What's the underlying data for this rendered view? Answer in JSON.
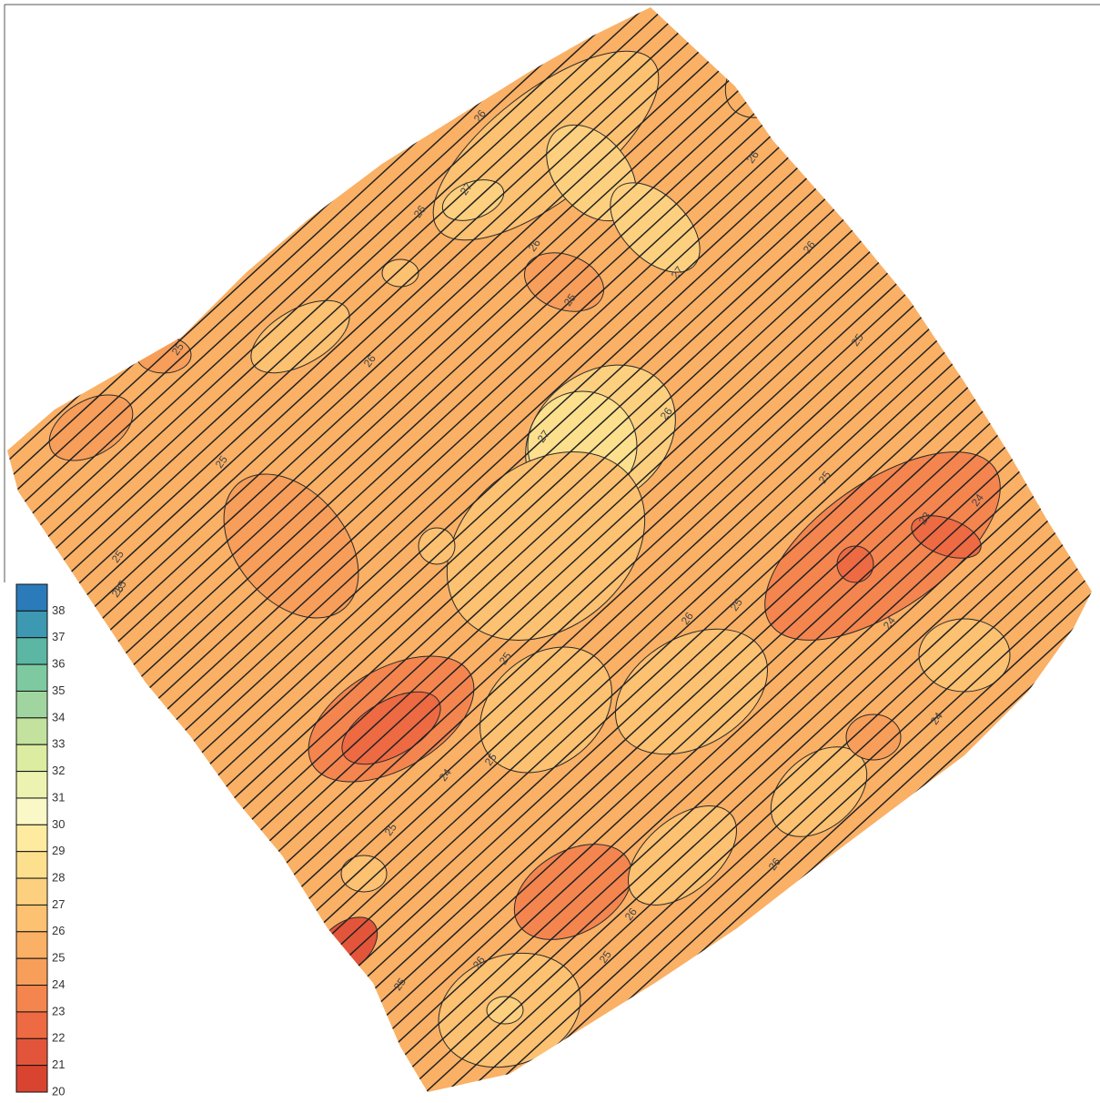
{
  "legend": {
    "levels": [
      {
        "value": 38,
        "color": "#2b7bba"
      },
      {
        "value": 37,
        "color": "#3d98b1"
      },
      {
        "value": 36,
        "color": "#5bb6a3"
      },
      {
        "value": 35,
        "color": "#7fc9a1"
      },
      {
        "value": 34,
        "color": "#a0d59f"
      },
      {
        "value": 33,
        "color": "#c2e29d"
      },
      {
        "value": 32,
        "color": "#dceca0"
      },
      {
        "value": 31,
        "color": "#ecf3b0"
      },
      {
        "value": 30,
        "color": "#fbf8c8"
      },
      {
        "value": 29,
        "color": "#feeba0"
      },
      {
        "value": 28,
        "color": "#fde08e"
      },
      {
        "value": 27,
        "color": "#fdd07f"
      },
      {
        "value": 26,
        "color": "#fcc171"
      },
      {
        "value": 25,
        "color": "#fab065"
      },
      {
        "value": 24,
        "color": "#f79e5a"
      },
      {
        "value": 23,
        "color": "#f4854f"
      },
      {
        "value": 22,
        "color": "#ed6a43"
      },
      {
        "value": 21,
        "color": "#e3553a"
      },
      {
        "value": 20,
        "color": "#d84430"
      }
    ]
  },
  "contour_labels": [
    26,
    27,
    26,
    26,
    26,
    25,
    26,
    27,
    25,
    25,
    26,
    27,
    26,
    25,
    25,
    25,
    25,
    24,
    23,
    24,
    26,
    25,
    24,
    25,
    25,
    24,
    25,
    26,
    26,
    25,
    25,
    26,
    25
  ]
}
